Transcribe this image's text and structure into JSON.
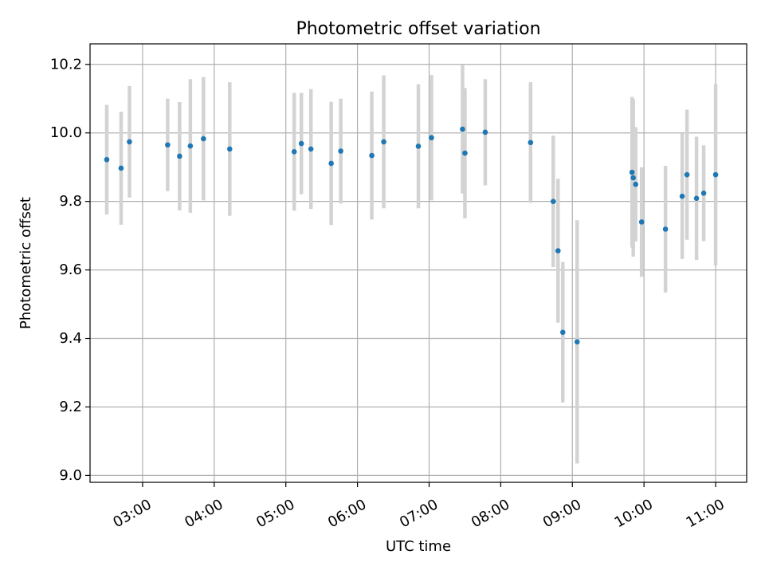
{
  "chart_data": {
    "type": "scatter",
    "title": "Photometric offset variation",
    "xlabel": "UTC time",
    "ylabel": "Photometric offset",
    "xlim": [
      "02:16",
      "11:26"
    ],
    "ylim": [
      8.98,
      10.26
    ],
    "xticks": [
      "03:00",
      "04:00",
      "05:00",
      "06:00",
      "07:00",
      "08:00",
      "09:00",
      "10:00",
      "11:00"
    ],
    "yticks": [
      "9.0",
      "9.2",
      "9.4",
      "9.6",
      "9.8",
      "10.0",
      "10.2"
    ],
    "grid": true,
    "point_color": "#1f77b4",
    "errorbar_color": "#d3d3d3",
    "points": [
      {
        "x": "02:30",
        "y": 9.922,
        "err": 0.16
      },
      {
        "x": "02:42",
        "y": 9.897,
        "err": 0.165
      },
      {
        "x": "02:49",
        "y": 9.974,
        "err": 0.163
      },
      {
        "x": "03:21",
        "y": 9.965,
        "err": 0.135
      },
      {
        "x": "03:31",
        "y": 9.932,
        "err": 0.158
      },
      {
        "x": "03:40",
        "y": 9.962,
        "err": 0.195
      },
      {
        "x": "03:51",
        "y": 9.983,
        "err": 0.18
      },
      {
        "x": "04:13",
        "y": 9.953,
        "err": 0.195
      },
      {
        "x": "05:07",
        "y": 9.945,
        "err": 0.172
      },
      {
        "x": "05:13",
        "y": 9.969,
        "err": 0.148
      },
      {
        "x": "05:21",
        "y": 9.953,
        "err": 0.175
      },
      {
        "x": "05:38",
        "y": 9.911,
        "err": 0.18
      },
      {
        "x": "05:46",
        "y": 9.947,
        "err": 0.153
      },
      {
        "x": "06:12",
        "y": 9.934,
        "err": 0.187
      },
      {
        "x": "06:22",
        "y": 9.974,
        "err": 0.194
      },
      {
        "x": "06:51",
        "y": 9.961,
        "err": 0.181
      },
      {
        "x": "07:02",
        "y": 9.986,
        "err": 0.183
      },
      {
        "x": "07:28",
        "y": 10.011,
        "err": 0.188
      },
      {
        "x": "07:30",
        "y": 9.941,
        "err": 0.19
      },
      {
        "x": "07:47",
        "y": 10.002,
        "err": 0.155
      },
      {
        "x": "08:25",
        "y": 9.972,
        "err": 0.176
      },
      {
        "x": "08:44",
        "y": 9.8,
        "err": 0.192
      },
      {
        "x": "08:48",
        "y": 9.656,
        "err": 0.21
      },
      {
        "x": "08:52",
        "y": 9.418,
        "err": 0.205
      },
      {
        "x": "09:04",
        "y": 9.39,
        "err": 0.355
      },
      {
        "x": "09:50",
        "y": 9.885,
        "err": 0.22
      },
      {
        "x": "09:51",
        "y": 9.869,
        "err": 0.23
      },
      {
        "x": "09:53",
        "y": 9.85,
        "err": 0.167
      },
      {
        "x": "09:58",
        "y": 9.74,
        "err": 0.16
      },
      {
        "x": "10:18",
        "y": 9.719,
        "err": 0.185
      },
      {
        "x": "10:32",
        "y": 9.815,
        "err": 0.183
      },
      {
        "x": "10:36",
        "y": 9.878,
        "err": 0.19
      },
      {
        "x": "10:44",
        "y": 9.809,
        "err": 0.18
      },
      {
        "x": "10:50",
        "y": 9.824,
        "err": 0.14
      },
      {
        "x": "11:00",
        "y": 9.878,
        "err": 0.265
      }
    ]
  }
}
